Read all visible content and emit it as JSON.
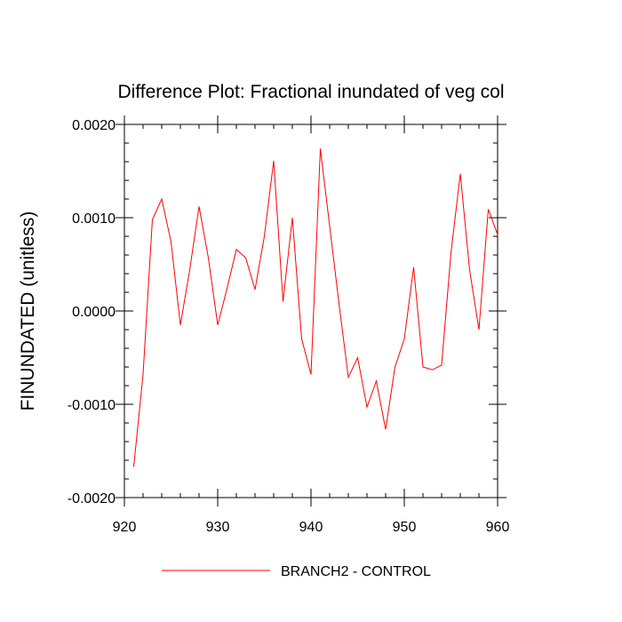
{
  "chart_data": {
    "type": "line",
    "title": "Difference Plot: Fractional inundated of veg col",
    "xlabel": "",
    "ylabel": "FINUNDATED  (unitless)",
    "xlim": [
      920,
      960
    ],
    "ylim": [
      -0.002,
      0.002
    ],
    "x_ticks": [
      920,
      930,
      940,
      950,
      960
    ],
    "x_tick_labels": [
      "920",
      "930",
      "940",
      "950",
      "960"
    ],
    "y_ticks": [
      -0.002,
      -0.001,
      0,
      0.001,
      0.002
    ],
    "y_tick_labels": [
      "-0.0020",
      "-0.0010",
      "0.0000",
      "0.0010",
      "0.0020"
    ],
    "grid": false,
    "legend_position": "bottom-center",
    "series": [
      {
        "name": "BRANCH2 - CONTROL",
        "color": "#ff0000",
        "x": [
          921,
          922,
          923,
          924,
          925,
          926,
          927,
          928,
          929,
          930,
          931,
          932,
          933,
          934,
          935,
          936,
          937,
          938,
          939,
          940,
          941,
          942,
          943,
          944,
          945,
          946,
          947,
          948,
          949,
          950,
          951,
          952,
          953,
          954,
          955,
          956,
          957,
          958,
          959,
          960
        ],
        "y": [
          -0.00167,
          -0.00068,
          0.00098,
          0.0012,
          0.00074,
          -0.00015,
          0.00044,
          0.00112,
          0.00057,
          -0.00015,
          0.00024,
          0.00066,
          0.00057,
          0.00023,
          0.0008,
          0.00161,
          0.0001,
          0.001,
          -0.0003,
          -0.00068,
          0.00174,
          0.00091,
          8e-05,
          -0.00071,
          -0.0005,
          -0.00103,
          -0.00075,
          -0.00127,
          -0.0006,
          -0.0003,
          0.00047,
          -0.0006,
          -0.00063,
          -0.00058,
          0.00062,
          0.00147,
          0.00044,
          -0.0002,
          0.00109,
          0.00082
        ]
      }
    ]
  }
}
